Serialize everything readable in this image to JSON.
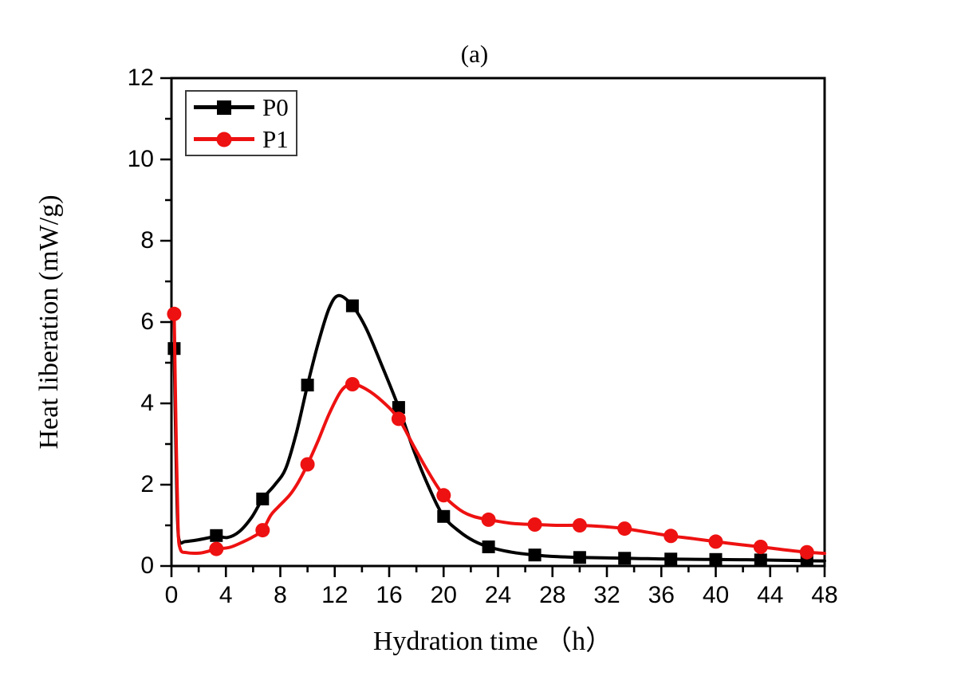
{
  "figure_label": "(a)",
  "chart_data": {
    "type": "line",
    "title": "(a)",
    "xlabel": "Hydration time （h）",
    "ylabel": "Heat liberation (mW/g)",
    "xlim": [
      0,
      48
    ],
    "ylim": [
      0,
      12
    ],
    "x_ticks": [
      0,
      4,
      8,
      12,
      16,
      20,
      24,
      28,
      32,
      36,
      40,
      44,
      48
    ],
    "y_ticks": [
      0,
      2,
      4,
      6,
      8,
      10,
      12
    ],
    "x_minor_ticks": [
      2,
      6,
      10,
      14,
      18,
      22,
      26,
      30,
      34,
      38,
      42,
      46
    ],
    "y_minor_ticks": [
      1,
      3,
      5,
      7,
      9,
      11
    ],
    "grid": "off",
    "legend": {
      "position": "top-left",
      "entries": [
        {
          "label": "P0",
          "color": "#000000",
          "marker": "square"
        },
        {
          "label": "P1",
          "color": "#ee1111",
          "marker": "circle"
        }
      ]
    },
    "series": [
      {
        "name": "P0",
        "color": "#000000",
        "marker": "square",
        "line_width": 4,
        "markers": [
          [
            0.2,
            5.35
          ],
          [
            3.3,
            0.75
          ],
          [
            6.7,
            1.65
          ],
          [
            10,
            4.45
          ],
          [
            13.3,
            6.4
          ],
          [
            16.7,
            3.9
          ],
          [
            20,
            1.22
          ],
          [
            23.3,
            0.47
          ],
          [
            26.7,
            0.27
          ],
          [
            30,
            0.21
          ],
          [
            33.3,
            0.19
          ],
          [
            36.7,
            0.17
          ],
          [
            40,
            0.16
          ],
          [
            43.3,
            0.15
          ],
          [
            46.7,
            0.13
          ]
        ],
        "curve": [
          [
            0.2,
            5.35
          ],
          [
            0.32,
            3.0
          ],
          [
            0.45,
            1.1
          ],
          [
            0.6,
            0.6
          ],
          [
            1.0,
            0.6
          ],
          [
            1.9,
            0.64
          ],
          [
            2.8,
            0.7
          ],
          [
            3.3,
            0.75
          ],
          [
            4.1,
            0.7
          ],
          [
            5.0,
            0.85
          ],
          [
            5.9,
            1.2
          ],
          [
            6.7,
            1.65
          ],
          [
            7.6,
            2.0
          ],
          [
            8.4,
            2.4
          ],
          [
            9.2,
            3.3
          ],
          [
            10,
            4.45
          ],
          [
            10.8,
            5.5
          ],
          [
            11.6,
            6.35
          ],
          [
            12.3,
            6.65
          ],
          [
            13.3,
            6.4
          ],
          [
            14.3,
            5.85
          ],
          [
            15.5,
            4.9
          ],
          [
            16.7,
            3.9
          ],
          [
            17.8,
            2.85
          ],
          [
            18.9,
            1.95
          ],
          [
            20,
            1.22
          ],
          [
            21.2,
            0.84
          ],
          [
            22.2,
            0.62
          ],
          [
            23.3,
            0.47
          ],
          [
            25,
            0.34
          ],
          [
            26.7,
            0.27
          ],
          [
            28.4,
            0.23
          ],
          [
            30,
            0.21
          ],
          [
            31.7,
            0.2
          ],
          [
            33.3,
            0.19
          ],
          [
            35,
            0.18
          ],
          [
            36.7,
            0.17
          ],
          [
            38.4,
            0.165
          ],
          [
            40,
            0.16
          ],
          [
            41.7,
            0.155
          ],
          [
            43.3,
            0.15
          ],
          [
            45,
            0.14
          ],
          [
            46.7,
            0.13
          ],
          [
            48,
            0.125
          ]
        ]
      },
      {
        "name": "P1",
        "color": "#ee1111",
        "marker": "circle",
        "line_width": 4,
        "markers": [
          [
            0.2,
            6.2
          ],
          [
            3.3,
            0.42
          ],
          [
            6.7,
            0.88
          ],
          [
            10,
            2.5
          ],
          [
            13.3,
            4.47
          ],
          [
            16.7,
            3.62
          ],
          [
            20,
            1.74
          ],
          [
            23.3,
            1.14
          ],
          [
            26.7,
            1.02
          ],
          [
            30,
            1.0
          ],
          [
            33.3,
            0.92
          ],
          [
            36.7,
            0.74
          ],
          [
            40,
            0.6
          ],
          [
            43.3,
            0.47
          ],
          [
            46.7,
            0.34
          ]
        ],
        "curve": [
          [
            0.2,
            6.2
          ],
          [
            0.33,
            3.5
          ],
          [
            0.48,
            1.0
          ],
          [
            0.65,
            0.42
          ],
          [
            1.1,
            0.33
          ],
          [
            2.1,
            0.32
          ],
          [
            3.0,
            0.39
          ],
          [
            3.3,
            0.42
          ],
          [
            4.3,
            0.46
          ],
          [
            5.3,
            0.6
          ],
          [
            6.0,
            0.72
          ],
          [
            6.7,
            0.88
          ],
          [
            7.3,
            1.25
          ],
          [
            7.9,
            1.47
          ],
          [
            8.7,
            1.75
          ],
          [
            9.3,
            2.05
          ],
          [
            10,
            2.5
          ],
          [
            10.8,
            3.1
          ],
          [
            11.6,
            3.75
          ],
          [
            12.5,
            4.32
          ],
          [
            13.3,
            4.47
          ],
          [
            14.3,
            4.35
          ],
          [
            15.5,
            4.05
          ],
          [
            16.7,
            3.62
          ],
          [
            17.8,
            2.95
          ],
          [
            18.9,
            2.3
          ],
          [
            20,
            1.74
          ],
          [
            21.2,
            1.38
          ],
          [
            22.2,
            1.22
          ],
          [
            23.3,
            1.14
          ],
          [
            25,
            1.05
          ],
          [
            26.7,
            1.02
          ],
          [
            28.3,
            1.0
          ],
          [
            30,
            1.0
          ],
          [
            31.7,
            0.97
          ],
          [
            33.3,
            0.92
          ],
          [
            35,
            0.83
          ],
          [
            36.7,
            0.74
          ],
          [
            38.4,
            0.67
          ],
          [
            40,
            0.6
          ],
          [
            41.7,
            0.53
          ],
          [
            43.3,
            0.47
          ],
          [
            45,
            0.4
          ],
          [
            46.7,
            0.34
          ],
          [
            48,
            0.31
          ]
        ]
      }
    ]
  },
  "axis_style": {
    "axis_color": "#000000",
    "tick_direction": "out"
  }
}
